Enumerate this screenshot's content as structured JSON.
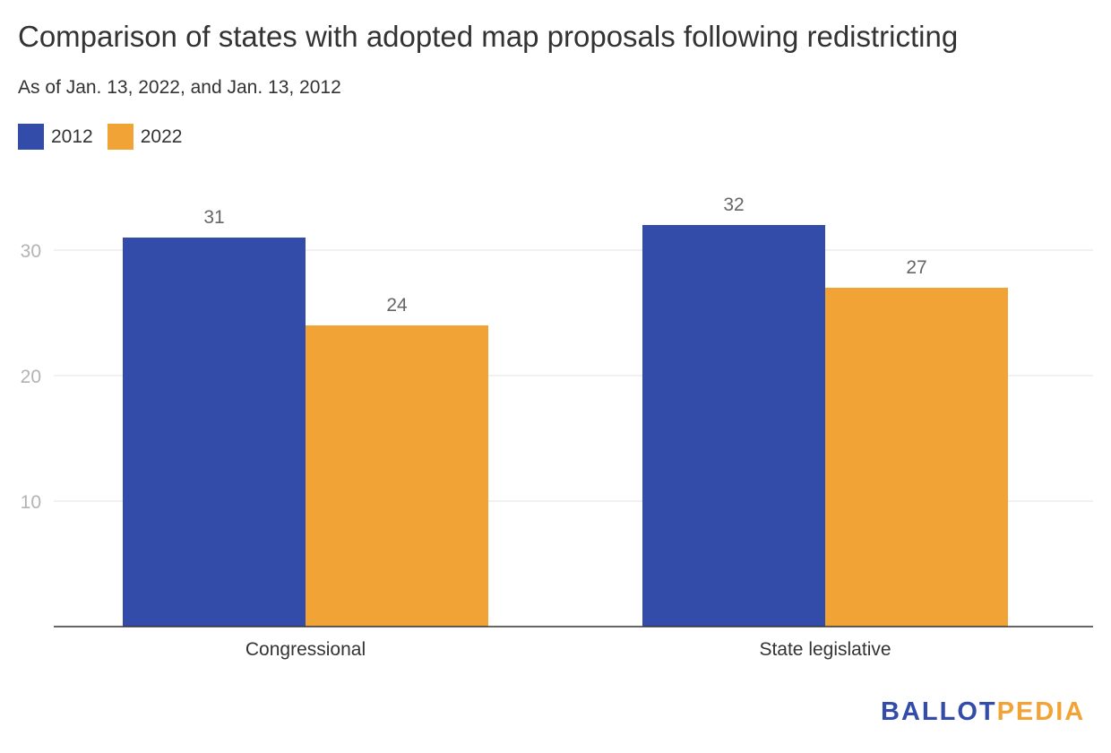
{
  "chart_data": {
    "type": "bar",
    "title": "Comparison of states with adopted map proposals following redistricting",
    "subtitle": "As of Jan. 13, 2022, and Jan. 13, 2012",
    "categories": [
      "Congressional",
      "State legislative"
    ],
    "series": [
      {
        "name": "2012",
        "values": [
          31,
          32
        ],
        "color": "#344ca9"
      },
      {
        "name": "2022",
        "values": [
          24,
          27
        ],
        "color": "#f1a336"
      }
    ],
    "yticks": [
      10,
      20,
      30
    ],
    "ylim": [
      0,
      30
    ],
    "grid": true,
    "legend_position": "top-left",
    "data_labels": true
  },
  "branding": {
    "logo_part1": "BALLOT",
    "logo_part2": "PEDIA",
    "color1": "#344ca9",
    "color2": "#f1a336"
  }
}
